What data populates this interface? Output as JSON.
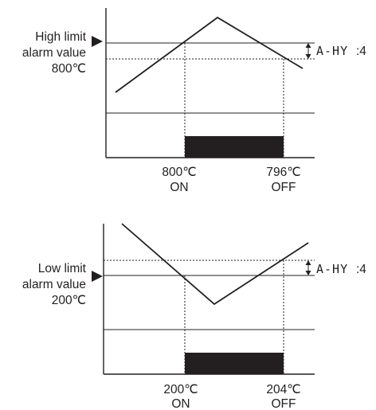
{
  "diagrams": [
    {
      "id": "high",
      "label_lines": [
        "High limit",
        "alarm value",
        "800℃"
      ],
      "hysteresis_code": "A-HY",
      "hysteresis_value": ":4",
      "on_temp": "800℃",
      "on_label": "ON",
      "off_temp": "796℃",
      "off_label": "OFF"
    },
    {
      "id": "low",
      "label_lines": [
        "Low limit",
        "alarm value",
        "200℃"
      ],
      "hysteresis_code": "A-HY",
      "hysteresis_value": ":4",
      "on_temp": "200℃",
      "on_label": "ON",
      "off_temp": "204℃",
      "off_label": "OFF"
    }
  ]
}
